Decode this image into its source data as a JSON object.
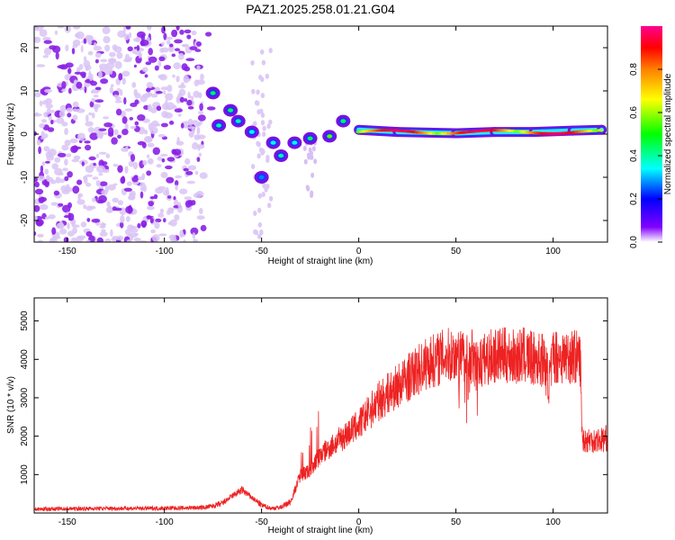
{
  "title": "PAZ1.2025.258.01.21.G04",
  "chart_data": [
    {
      "type": "heatmap",
      "xlabel": "Height of straight line (km)",
      "ylabel": "Frequency (Hz)",
      "xlim": [
        -167,
        128
      ],
      "ylim": [
        -25,
        25
      ],
      "xticks": [
        -150,
        -100,
        -50,
        0,
        50,
        100
      ],
      "yticks": [
        -20,
        -10,
        0,
        10,
        20
      ],
      "colorbar": {
        "label": "Normalized spectral amplitude",
        "range": [
          0,
          1
        ],
        "ticks": [
          0.0,
          0.2,
          0.4,
          0.6,
          0.8
        ],
        "colors": [
          "#7000e0",
          "#0000ff",
          "#00ffff",
          "#00ff00",
          "#ffff00",
          "#ff8000",
          "#ff0000",
          "#ff0090"
        ]
      },
      "ridge_points": [
        {
          "x": -75,
          "y": 9.5,
          "amp": 0.3
        },
        {
          "x": -72,
          "y": 2.0,
          "amp": 0.25
        },
        {
          "x": -66,
          "y": 5.5,
          "amp": 0.3
        },
        {
          "x": -62,
          "y": 3.0,
          "amp": 0.25
        },
        {
          "x": -55,
          "y": 0.5,
          "amp": 0.2
        },
        {
          "x": -50,
          "y": -10.0,
          "amp": 0.15
        },
        {
          "x": -44,
          "y": -2.0,
          "amp": 0.2
        },
        {
          "x": -40,
          "y": -5.0,
          "amp": 0.25
        },
        {
          "x": -33,
          "y": -2.0,
          "amp": 0.2
        },
        {
          "x": -25,
          "y": -1.0,
          "amp": 0.3
        },
        {
          "x": -15,
          "y": -0.5,
          "amp": 0.4
        },
        {
          "x": -8,
          "y": 3.0,
          "amp": 0.3
        },
        {
          "x": 0,
          "y": 1.0,
          "amp": 0.8
        },
        {
          "x": 20,
          "y": 0.5,
          "amp": 0.85
        },
        {
          "x": 50,
          "y": 0.2,
          "amp": 0.85
        },
        {
          "x": 70,
          "y": 0.5,
          "amp": 0.9
        },
        {
          "x": 90,
          "y": 0.5,
          "amp": 0.8
        },
        {
          "x": 110,
          "y": 0.8,
          "amp": 0.8
        },
        {
          "x": 125,
          "y": 1.0,
          "amp": 0.75
        }
      ]
    },
    {
      "type": "line",
      "xlabel": "Height of straight line (km)",
      "ylabel": "SNR (10 * v/v)",
      "xlim": [
        -167,
        128
      ],
      "ylim": [
        0,
        5600
      ],
      "xticks": [
        -150,
        -100,
        -50,
        0,
        50,
        100
      ],
      "yticks": [
        1000,
        2000,
        3000,
        4000,
        5000
      ],
      "series": [
        {
          "name": "SNR",
          "color": "#ee2222",
          "x": [
            -167,
            -150,
            -130,
            -110,
            -90,
            -80,
            -75,
            -70,
            -65,
            -60,
            -55,
            -50,
            -45,
            -40,
            -35,
            -30,
            -25,
            -20,
            -15,
            -10,
            -5,
            0,
            5,
            10,
            15,
            20,
            25,
            30,
            35,
            40,
            45,
            50,
            55,
            60,
            65,
            70,
            75,
            80,
            85,
            90,
            95,
            98,
            100,
            105,
            110,
            114,
            115,
            117,
            120,
            125,
            128
          ],
          "y": [
            100,
            110,
            120,
            120,
            130,
            140,
            180,
            250,
            450,
            600,
            400,
            200,
            120,
            150,
            300,
            1000,
            1100,
            1500,
            1700,
            1900,
            2100,
            2300,
            2600,
            2900,
            3100,
            3300,
            3500,
            3700,
            3900,
            4000,
            4100,
            4100,
            4000,
            3800,
            4000,
            4100,
            4100,
            4050,
            4100,
            4000,
            4000,
            3400,
            4100,
            4050,
            4100,
            4000,
            1950,
            1900,
            1900,
            1900,
            1950
          ]
        }
      ]
    }
  ]
}
